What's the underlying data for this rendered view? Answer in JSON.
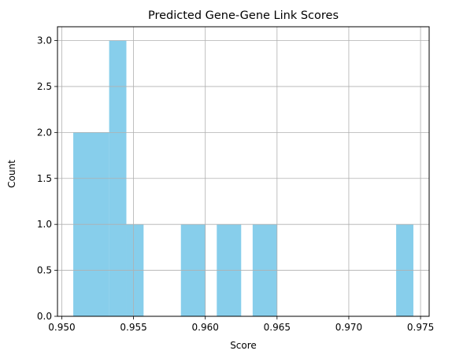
{
  "chart_data": {
    "type": "bar",
    "title": "Predicted Gene-Gene Link Scores",
    "xlabel": "Score",
    "ylabel": "Count",
    "bar_color": "#87ceeb",
    "grid": true,
    "xlim": [
      0.9497,
      0.9756
    ],
    "ylim": [
      0,
      3.15
    ],
    "xticks": [
      0.95,
      0.955,
      0.96,
      0.965,
      0.97,
      0.975
    ],
    "xtick_labels": [
      "0.950",
      "0.955",
      "0.960",
      "0.965",
      "0.970",
      "0.975"
    ],
    "yticks": [
      0.0,
      0.5,
      1.0,
      1.5,
      2.0,
      2.5,
      3.0
    ],
    "ytick_labels": [
      "0.0",
      "0.5",
      "1.0",
      "1.5",
      "2.0",
      "2.5",
      "3.0"
    ],
    "bins": [
      {
        "x0": 0.9508,
        "x1": 0.9533,
        "count": 2
      },
      {
        "x0": 0.9533,
        "x1": 0.9545,
        "count": 3
      },
      {
        "x0": 0.9545,
        "x1": 0.9557,
        "count": 1
      },
      {
        "x0": 0.9583,
        "x1": 0.96,
        "count": 1
      },
      {
        "x0": 0.9608,
        "x1": 0.9625,
        "count": 1
      },
      {
        "x0": 0.9633,
        "x1": 0.965,
        "count": 1
      },
      {
        "x0": 0.9733,
        "x1": 0.9745,
        "count": 1
      }
    ]
  }
}
